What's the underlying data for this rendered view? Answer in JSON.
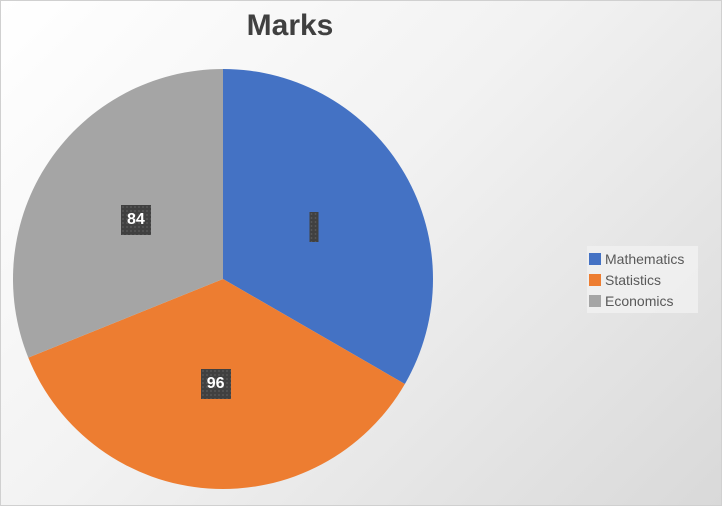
{
  "chart_data": {
    "type": "pie",
    "title": "Marks",
    "categories": [
      "Mathematics",
      "Statistics",
      "Economics"
    ],
    "values": [
      90,
      96,
      84
    ],
    "data_labels": [
      "",
      "96",
      "84"
    ],
    "colors": [
      "#4472c4",
      "#ed7d31",
      "#a5a5a5"
    ],
    "start_angle_deg": 0,
    "direction": "clockwise",
    "legend_position": "right"
  }
}
